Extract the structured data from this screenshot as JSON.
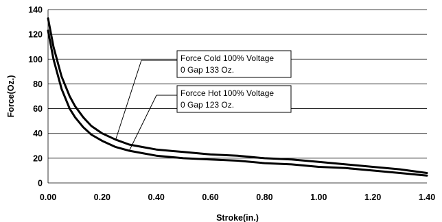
{
  "chart_data": {
    "type": "line",
    "xlabel": "Stroke(in.)",
    "ylabel": "Force(Oz.)",
    "xlim": [
      0,
      1.4
    ],
    "ylim": [
      0,
      140
    ],
    "x_ticks": [
      "0.00",
      "0.20",
      "0.40",
      "0.60",
      "0.80",
      "1.00",
      "1.20",
      "1.40"
    ],
    "y_ticks": [
      "0",
      "20",
      "40",
      "60",
      "80",
      "100",
      "120",
      "140"
    ],
    "grid": "horizontal",
    "series": [
      {
        "key": "cold",
        "x": [
          0,
          0.02,
          0.05,
          0.08,
          0.1,
          0.13,
          0.16,
          0.2,
          0.25,
          0.3,
          0.35,
          0.4,
          0.5,
          0.6,
          0.7,
          0.8,
          0.9,
          1.0,
          1.1,
          1.2,
          1.3,
          1.4
        ],
        "values": [
          133,
          110,
          86,
          70,
          62,
          53,
          46,
          40,
          35,
          31,
          29,
          27,
          25,
          23,
          22,
          20,
          19,
          17,
          15,
          13,
          11,
          8
        ]
      },
      {
        "key": "hot",
        "x": [
          0,
          0.02,
          0.05,
          0.08,
          0.1,
          0.13,
          0.16,
          0.2,
          0.25,
          0.3,
          0.35,
          0.4,
          0.5,
          0.6,
          0.7,
          0.8,
          0.9,
          1.0,
          1.1,
          1.2,
          1.3,
          1.4
        ],
        "values": [
          123,
          100,
          76,
          60,
          53,
          45,
          39,
          34,
          29,
          26,
          24,
          22,
          20,
          19,
          18,
          16,
          15,
          13,
          12,
          10,
          8,
          6
        ]
      }
    ],
    "annotations": [
      {
        "key": "cold",
        "lines": [
          "Force Cold 100% Voltage",
          "0 Gap 133 Oz."
        ],
        "point": [
          0.25,
          35
        ]
      },
      {
        "key": "hot",
        "lines": [
          "Forcce Hot 100% Voltage",
          "0 Gap 123 Oz."
        ],
        "point": [
          0.3,
          26
        ]
      }
    ]
  }
}
